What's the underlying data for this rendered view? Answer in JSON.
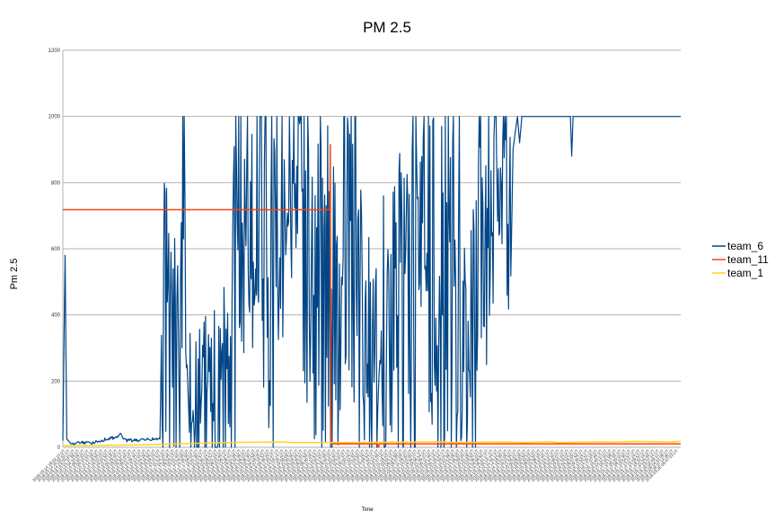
{
  "chart_data": {
    "type": "line",
    "title": "PM 2.5",
    "xlabel": "Time",
    "ylabel": "Pm 2.5",
    "ylim": [
      0,
      1200
    ],
    "yticks": [
      0,
      200,
      400,
      600,
      800,
      1000,
      1200
    ],
    "grid": true,
    "legend_position": "right",
    "x_tick_labels": [
      "2018-03-14 18:02:15 UT",
      "2018-03-14 20:32:42 UT",
      "2018-03-14 23:05:11 UT",
      "2018-03-15 01:37:39 UT",
      "2018-03-15 04:10:06 UT",
      "2018-03-15 06:42:33 UT",
      "2018-03-15 09:15:01 UT",
      "2018-03-15 11:47:28 UT",
      "2018-03-15 14:19:56 UT",
      "2018-03-15 16:52:23 UT",
      "2018-03-15 19:24:50 UT",
      "2018-03-15 21:57:18 UT",
      "2018-03-16 00:29:45 UT",
      "2018-03-16 03:02:12 UT",
      "2018-03-16 05:34:40 UT",
      "2018-03-16 08:07:07 UT",
      "2018-03-16 10:39:34 UT",
      "2018-03-16 13:12:02 UT",
      "2018-03-16 15:44:29 UT",
      "2018-03-16 18:16:56 UT",
      "2018-03-16 20:49:24 UT",
      "2018-03-16 23:21:51 UT",
      "2018-03-17 01:54:18 UT",
      "2018-03-17 04:26:46 UT",
      "2018-03-17 06:59:13 UT",
      "2018-03-17 09:31:40 UT",
      "2018-03-17 12:04:08 UT",
      "2018-03-17 14:36:35 UT",
      "2018-03-17 17:09:02 UT",
      "2018-03-17 19:41:30 UT",
      "2018-03-17 22:13:57 UT",
      "2018-03-18 00:46:24 UT",
      "2018-03-18 03:18:52 UT",
      "2018-03-18 05:51:19 UT",
      "2018-03-18 08:23:46 UT",
      "2018-03-18 10:56:14 UT",
      "2018-03-18 13:28:41 UT",
      "2018-03-18 16:01:08 UT",
      "2018-03-18 18:33:36 UT",
      "2018-03-18 21:06:03 UT",
      "2018-03-18 23:38:30 UT",
      "2018-03-19 02:10:58 UT",
      "2018-03-19 04:43:25 UT",
      "2018-03-19 07:15:52 UT",
      "2018-03-19 09:48:20 UT",
      "2018-03-19 12:20:47 UT",
      "2018-03-19 14:53:14 UT",
      "2018-03-19 17:25:42 UT",
      "2018-03-19 19:58:09 UT",
      "2018-03-19 22:30:36 UT",
      "2018-03-20 01:03:04 UT",
      "2018-03-20 03:35:31 UT",
      "2018-03-20 06:07:58 UT",
      "2018-03-20 08:40:26 UT",
      "2018-03-20 11:12:53 UT",
      "2018-03-20 13:45:20 UT",
      "2018-03-20 16:17:48 UT",
      "2018-03-20 18:50:15 UT",
      "2018-03-20 21:22:42 UT",
      "2018-03-20 23:55:10 UT",
      "2018-03-21 02:27:37 UT",
      "2018-03-21 05:00:04 UT",
      "2018-03-21 07:32:32 UT",
      "2018-03-21 10:04:59 UT",
      "2018-03-21 12:37:26 UT",
      "2018-03-21 15:09:54 UT",
      "2018-03-21 17:42:21 UT",
      "2018-03-21 20:14:48 UT",
      "2018-03-21 22:47:16 UT",
      "2018-03-22 01:19:43 UT",
      "2018-03-22 03:52:10 UT",
      "2018-03-22 06:24:38 UT",
      "2018-03-22 08:57:05 UT",
      "2018-03-22 11:29:32 UT",
      "2018-03-22 14:02:00 UT",
      "2018-03-22 16:34:27 UT",
      "2018-03-22 19:06:54 UT",
      "2018-03-22 21:39:22 UT",
      "2018-03-23 00:11:49 UT",
      "2018-03-23 02:44:16 UT",
      "2018-03-23 05:16:44 UT",
      "2018-03-23 07:49:11 UT",
      "2018-03-23 10:21:38 UT",
      "2018-03-23 12:54:06 UT",
      "2018-03-23 15:26:33 UT",
      "2018-03-23 17:59:00 UT",
      "2018-03-23 20:31:28 UT",
      "2018-03-23 23:03:55 UT",
      "2018-03-24 01:36:22 UT",
      "2018-03-24 04:08:50 UT",
      "2018-03-24 06:41:17 UT",
      "2018-03-24 09:13:44 UT",
      "2018-03-24 11:46:12 UT",
      "2018-03-24 14:18:39 UT",
      "2018-03-24 16:51:06 UT",
      "2018-03-24 19:23:34 UT",
      "2018-03-24 21:56:01 UT",
      "2018-03-25 00:28:28 UT",
      "2018-03-25 03:00:56 UT",
      "2018-03-25 05:33:23 UT",
      "2018-03-25 08:05:50 UT",
      "2018-03-25 10:38:18 UT",
      "2018-03-25 13:10:45 UT",
      "2018-03-25 15:43:12 UT",
      "2018-03-25 18:15:40 UT",
      "2018-03-25 20:48:07 UT",
      "2018-03-25 23:20:34 UT",
      "2018-03-26 01:53:02 UT",
      "2018-03-26 04:25:29 UT",
      "2018-03-26 06:57:56 UT",
      "2018-03-26 09:30:24 UT",
      "2018-03-26 12:02:51 UT",
      "2018-03-26 14:35:18 UT",
      "2018-03-26 17:07:46 UT",
      "2018-03-26 19:40:13 UT",
      "2018-03-26 22:12:40 UT",
      "2018-03-27 00:45:08 UT",
      "2018-03-27 03:17:35 UT",
      "2018-03-27 05:50:02 UT",
      "2018-03-27 08:22:30 UT",
      "2018-03-27 10:54:57 UT",
      "2018-03-27 13:27:24 UT",
      "2018-03-27 15:59:52 UT",
      "2018-03-27 18:32:19 UT",
      "2018-03-27 21:04:46 UT",
      "2018-03-27 23:37:14 UT",
      "2018-03-28 02:09:41 UT",
      "2018-03-28 04:42:08 UT",
      "2018-03-28 07:14:36 UT",
      "2018-03-28 09:47:03 UT"
    ],
    "x_index_range": [
      0,
      140
    ],
    "series": [
      {
        "name": "team_6",
        "color": "#004586",
        "noise": true,
        "values": [
          [
            0,
            20
          ],
          [
            0.5,
            580
          ],
          [
            0.9,
            25
          ],
          [
            2,
            8
          ],
          [
            4,
            15
          ],
          [
            6,
            12
          ],
          [
            8,
            18
          ],
          [
            10,
            25
          ],
          [
            12,
            30
          ],
          [
            13,
            40
          ],
          [
            14,
            22
          ],
          [
            16,
            20
          ],
          [
            18,
            22
          ],
          [
            20,
            24
          ],
          [
            22,
            25
          ],
          [
            23,
            350
          ],
          [
            24,
            300
          ],
          [
            25,
            250
          ],
          [
            26,
            300
          ],
          [
            27,
            300
          ],
          [
            27.5,
            740
          ],
          [
            28,
            120
          ],
          [
            30,
            100
          ],
          [
            32,
            130
          ],
          [
            34,
            150
          ],
          [
            36,
            160
          ],
          [
            38,
            200
          ],
          [
            40,
            650
          ],
          [
            42,
            700
          ],
          [
            44,
            750
          ],
          [
            46,
            600
          ],
          [
            48,
            500
          ],
          [
            50,
            750
          ],
          [
            52,
            800
          ],
          [
            54,
            700
          ],
          [
            56,
            600
          ],
          [
            58,
            500
          ],
          [
            60,
            450
          ],
          [
            62,
            300
          ],
          [
            64,
            700
          ],
          [
            66,
            500
          ],
          [
            68,
            300
          ],
          [
            70,
            250
          ],
          [
            72,
            300
          ],
          [
            74,
            350
          ],
          [
            76,
            420
          ],
          [
            78,
            470
          ],
          [
            80,
            500
          ],
          [
            82,
            520
          ],
          [
            84,
            510
          ],
          [
            86,
            500
          ],
          [
            88,
            500
          ],
          [
            90,
            480
          ],
          [
            91,
            350
          ],
          [
            92,
            300
          ],
          [
            94,
            450
          ],
          [
            96,
            650
          ],
          [
            98,
            800
          ],
          [
            100,
            850
          ],
          [
            101,
            750
          ],
          [
            102,
            900
          ],
          [
            103,
            1000
          ],
          [
            103.5,
            920
          ],
          [
            104,
            1000
          ],
          [
            110,
            1000
          ],
          [
            115,
            1000
          ],
          [
            115.3,
            880
          ],
          [
            115.6,
            1000
          ],
          [
            120,
            1000
          ],
          [
            130,
            1000
          ],
          [
            140,
            1000
          ]
        ]
      },
      {
        "name": "team_11",
        "color": "#ff420e",
        "noise": false,
        "values": [
          [
            0,
            718
          ],
          [
            60.5,
            718
          ],
          [
            60.6,
            915
          ],
          [
            60.7,
            10
          ],
          [
            70,
            10
          ],
          [
            71.3,
            10
          ],
          [
            71.5,
            0
          ],
          [
            71.7,
            10
          ],
          [
            140,
            10
          ]
        ]
      },
      {
        "name": "team_1",
        "color": "#ffd320",
        "noise": false,
        "values": [
          [
            0,
            5
          ],
          [
            10,
            6
          ],
          [
            20,
            8
          ],
          [
            30,
            12
          ],
          [
            40,
            15
          ],
          [
            50,
            16
          ],
          [
            52,
            14
          ],
          [
            60,
            14
          ],
          [
            70,
            15
          ],
          [
            80,
            16
          ],
          [
            86,
            17
          ],
          [
            88,
            14
          ],
          [
            92,
            15
          ],
          [
            100,
            16
          ],
          [
            105,
            14
          ],
          [
            110,
            17
          ],
          [
            112,
            14
          ],
          [
            120,
            16
          ],
          [
            125,
            16
          ],
          [
            130,
            18
          ],
          [
            138,
            16
          ],
          [
            140,
            18
          ]
        ]
      }
    ]
  }
}
